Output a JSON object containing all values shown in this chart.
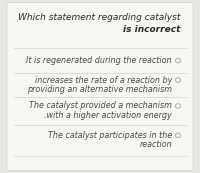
{
  "title_line1": "Which statement regarding catalyst",
  "title_line2": "is incorrect",
  "background_color": "#e8e6e1",
  "card_color": "#f7f6f3",
  "options": [
    [
      "It is regenerated during the reaction"
    ],
    [
      "increases the rate of a reaction by",
      "providing an alternative mechanism"
    ],
    [
      "The catalyst provided a mechanism",
      ".with a higher activation energy"
    ],
    [
      "The catalyst participates in the",
      "reaction"
    ]
  ],
  "divider_color": "#c8c8c8",
  "text_color": "#4a4a4a",
  "title_color": "#2a2a2a",
  "circle_color": "#b0b0b0",
  "option_fontsize": 5.8,
  "title_fontsize": 6.5
}
